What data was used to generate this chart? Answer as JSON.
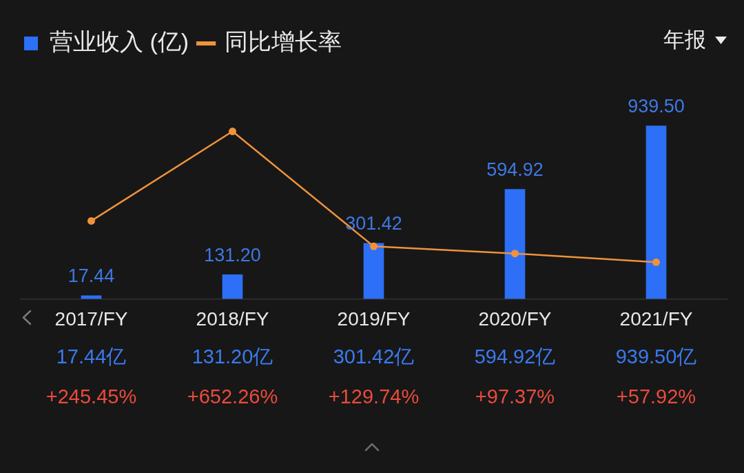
{
  "chart_data": {
    "type": "bar",
    "categories": [
      "2017/FY",
      "2018/FY",
      "2019/FY",
      "2020/FY",
      "2021/FY"
    ],
    "series": [
      {
        "name": "营业收入 (亿)",
        "color": "#2d6ff6",
        "values": [
          17.44,
          131.2,
          301.42,
          594.92,
          939.5
        ],
        "value_labels": [
          "17.44",
          "131.20",
          "301.42",
          "594.92",
          "939.50"
        ]
      },
      {
        "name": "同比增长率",
        "type": "line",
        "axis": "y2",
        "color": "#f0923c",
        "marker": "circle",
        "values": [
          245.45,
          652.26,
          129.74,
          97.37,
          57.92
        ],
        "value_labels": [
          "+245.45%",
          "+652.26%",
          "+129.74%",
          "+97.37%",
          "+57.92%"
        ]
      }
    ],
    "tick_labels": "x",
    "grid": false,
    "legend": "top left",
    "annotations": [
      "年报",
      "17.44亿",
      "131.20亿",
      "301.42亿",
      "594.92亿",
      "939.50亿"
    ]
  }
}
